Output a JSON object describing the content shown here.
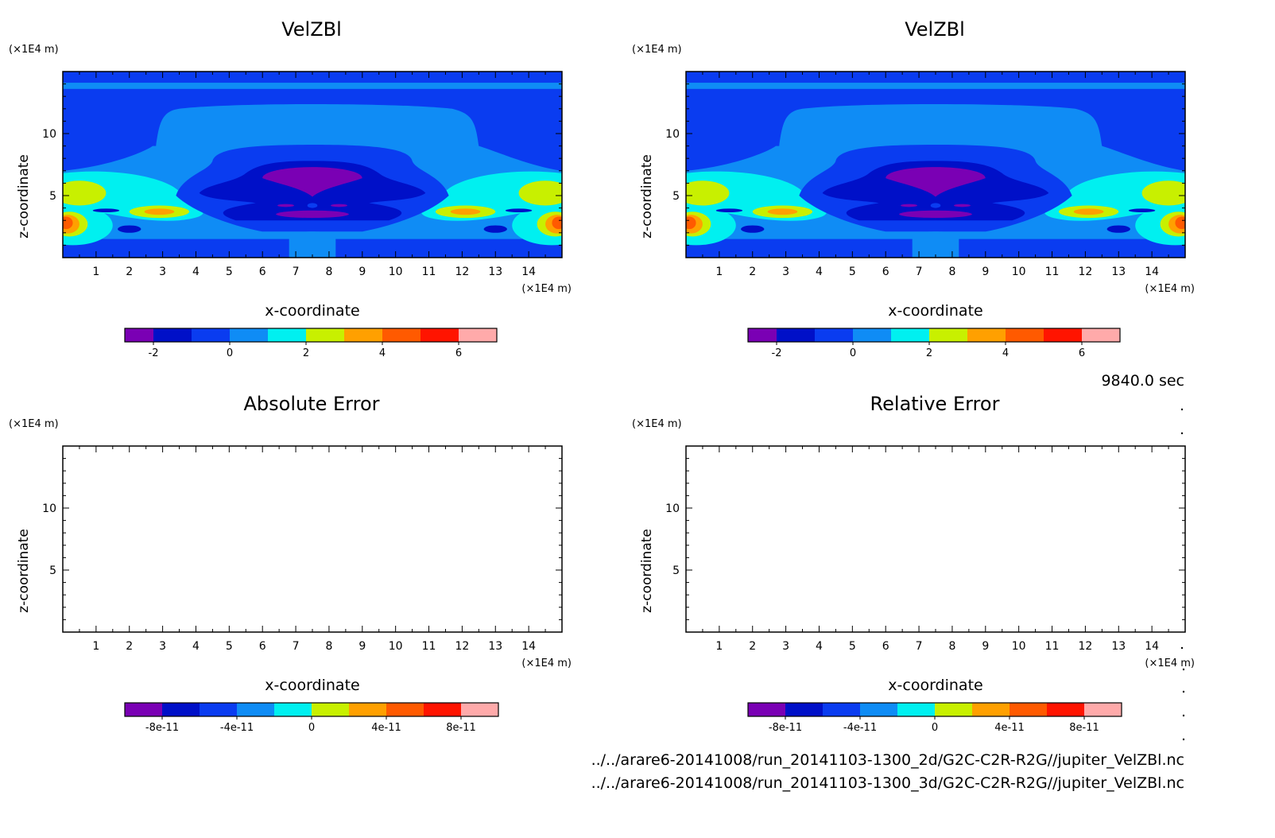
{
  "time_label": "9840.0 sec",
  "file_paths": [
    "../../arare6-20141008/run_20141103-1300_2d/G2C-C2R-R2G//jupiter_VelZBl.nc",
    "../../arare6-20141008/run_20141103-1300_3d/G2C-C2R-R2G//jupiter_VelZBl.nc"
  ],
  "axis_common": {
    "x_label": "x-coordinate",
    "z_label": "z-coordinate",
    "x_unit": "(×1E4 m)",
    "z_unit": "(×1E4 m)",
    "x_ticks": [
      "1",
      "2",
      "3",
      "4",
      "5",
      "6",
      "7",
      "8",
      "9",
      "10",
      "11",
      "12",
      "13",
      "14"
    ],
    "z_ticks": [
      "5",
      "10"
    ]
  },
  "colors": {
    "palette": [
      "#7a00b4",
      "#0010c8",
      "#0a3cf0",
      "#0f8cf5",
      "#00f0f0",
      "#c8f000",
      "#ffa000",
      "#ff5a00",
      "#ff1400",
      "#ffaaaa"
    ]
  },
  "chart_data": [
    {
      "type": "heatmap",
      "title": "VelZBl",
      "xlabel": "x-coordinate",
      "ylabel": "z-coordinate",
      "xlim": [
        0,
        15
      ],
      "ylim": [
        0,
        15
      ],
      "colorbar_ticks": [
        "-2",
        "0",
        "2",
        "4",
        "6"
      ],
      "colorbar_range": [
        -3,
        7
      ],
      "levels": [
        -3,
        -2,
        -1,
        0,
        1,
        2,
        3,
        4,
        5,
        6,
        7
      ]
    },
    {
      "type": "heatmap",
      "title": "VelZBl",
      "xlabel": "x-coordinate",
      "ylabel": "z-coordinate",
      "xlim": [
        0,
        15
      ],
      "ylim": [
        0,
        15
      ],
      "colorbar_ticks": [
        "-2",
        "0",
        "2",
        "4",
        "6"
      ],
      "colorbar_range": [
        -3,
        7
      ],
      "levels": [
        -3,
        -2,
        -1,
        0,
        1,
        2,
        3,
        4,
        5,
        6,
        7
      ]
    },
    {
      "type": "heatmap",
      "title": "Absolute Error",
      "xlabel": "x-coordinate",
      "ylabel": "z-coordinate",
      "xlim": [
        0,
        15
      ],
      "ylim": [
        0,
        15
      ],
      "colorbar_ticks": [
        "-8e-11",
        "-4e-11",
        "0",
        "4e-11",
        "8e-11"
      ],
      "values": "empty"
    },
    {
      "type": "heatmap",
      "title": "Relative Error",
      "xlabel": "x-coordinate",
      "ylabel": "z-coordinate",
      "xlim": [
        0,
        15
      ],
      "ylim": [
        0,
        15
      ],
      "colorbar_ticks": [
        "-8e-11",
        "-4e-11",
        "0",
        "4e-11",
        "8e-11"
      ],
      "values": "empty"
    }
  ]
}
